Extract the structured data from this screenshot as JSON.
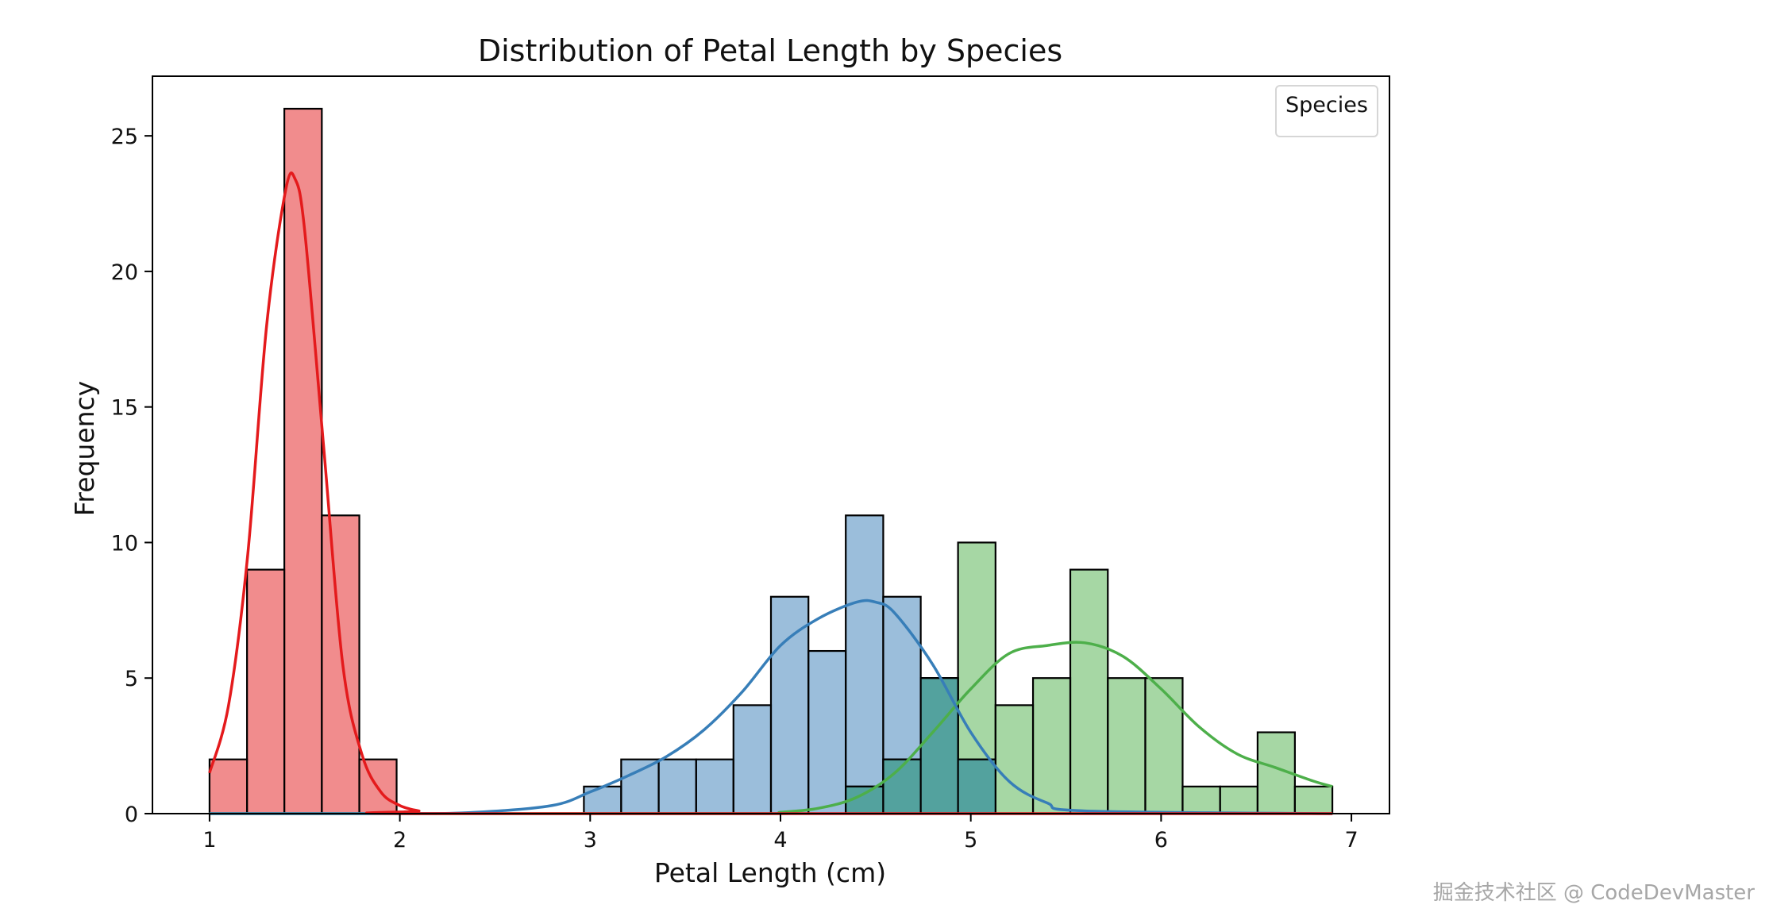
{
  "chart_data": {
    "type": "bar",
    "title": "Distribution of Petal Length by Species",
    "xlabel": "Petal Length (cm)",
    "ylabel": "Frequency",
    "xlim": [
      0.7,
      7.2
    ],
    "ylim": [
      0,
      27.2
    ],
    "xticks": [
      1,
      2,
      3,
      4,
      5,
      6,
      7
    ],
    "yticks": [
      0,
      5,
      10,
      15,
      20,
      25
    ],
    "bin_edges": [
      1.0,
      1.197,
      1.393,
      1.59,
      1.787,
      1.983,
      2.18,
      2.377,
      2.573,
      2.77,
      2.967,
      3.163,
      3.36,
      3.557,
      3.753,
      3.95,
      4.147,
      4.343,
      4.54,
      4.737,
      4.933,
      5.13,
      5.327,
      5.523,
      5.72,
      5.917,
      6.113,
      6.31,
      6.507,
      6.703,
      6.9
    ],
    "grid": false,
    "legend": {
      "title": "Species",
      "position": "upper right",
      "entries": []
    },
    "series": [
      {
        "color": "#e41a1c",
        "fill": "rgba(228,26,28,0.5)",
        "counts": [
          2,
          9,
          26,
          11,
          2,
          0,
          0,
          0,
          0,
          0,
          0,
          0,
          0,
          0,
          0,
          0,
          0,
          0,
          0,
          0,
          0,
          0,
          0,
          0,
          0,
          0,
          0,
          0,
          0,
          0
        ],
        "kde": {
          "x": [
            1.0,
            1.1,
            1.2,
            1.3,
            1.4,
            1.45,
            1.5,
            1.6,
            1.7,
            1.8,
            1.9,
            2.0,
            2.1,
            2.2,
            6.9
          ],
          "y": [
            1.5,
            4.0,
            9.5,
            18.0,
            23.0,
            23.4,
            21.5,
            13.5,
            5.5,
            2.2,
            0.8,
            0.3,
            0.1,
            0.0,
            0.0
          ]
        }
      },
      {
        "color": "#377eb8",
        "fill": "rgba(55,126,184,0.5)",
        "counts": [
          0,
          0,
          0,
          0,
          0,
          0,
          0,
          0,
          0,
          0,
          1,
          2,
          2,
          2,
          4,
          8,
          6,
          11,
          8,
          5,
          2,
          0,
          0,
          0,
          0,
          0,
          0,
          0,
          0,
          0
        ],
        "overlay_counts": [
          0,
          0,
          0,
          0,
          0,
          0,
          0,
          0,
          0,
          0,
          0,
          0,
          0,
          0,
          0,
          0,
          0,
          1,
          2,
          5,
          2,
          0,
          0,
          0,
          0,
          0,
          0,
          0,
          0,
          0
        ],
        "kde": {
          "x": [
            1.0,
            2.0,
            2.4,
            2.8,
            3.0,
            3.2,
            3.4,
            3.6,
            3.8,
            4.0,
            4.2,
            4.4,
            4.5,
            4.6,
            4.8,
            5.0,
            5.2,
            5.4,
            5.6,
            6.9
          ],
          "y": [
            0.0,
            0.0,
            0.05,
            0.3,
            0.8,
            1.4,
            2.1,
            3.1,
            4.5,
            6.2,
            7.2,
            7.8,
            7.8,
            7.4,
            5.5,
            3.0,
            1.2,
            0.4,
            0.1,
            0.0
          ]
        }
      },
      {
        "color": "#4daf4a",
        "fill": "rgba(77,175,74,0.5)",
        "counts": [
          0,
          0,
          0,
          0,
          0,
          0,
          0,
          0,
          0,
          0,
          0,
          0,
          0,
          0,
          0,
          0,
          0,
          1,
          2,
          5,
          10,
          4,
          5,
          9,
          5,
          5,
          1,
          1,
          3,
          1
        ],
        "kde": {
          "x": [
            1.0,
            3.8,
            4.0,
            4.2,
            4.4,
            4.6,
            4.8,
            5.0,
            5.2,
            5.4,
            5.6,
            5.8,
            6.0,
            6.2,
            6.4,
            6.6,
            6.8,
            6.9
          ],
          "y": [
            0.0,
            0.0,
            0.05,
            0.2,
            0.6,
            1.5,
            3.0,
            4.6,
            5.9,
            6.2,
            6.3,
            5.8,
            4.6,
            3.2,
            2.2,
            1.7,
            1.2,
            1.0
          ]
        }
      }
    ],
    "overlay_fill": "rgba(80,160,160,0.9)"
  },
  "watermark": "掘金技术社区 @ CodeDevMaster"
}
